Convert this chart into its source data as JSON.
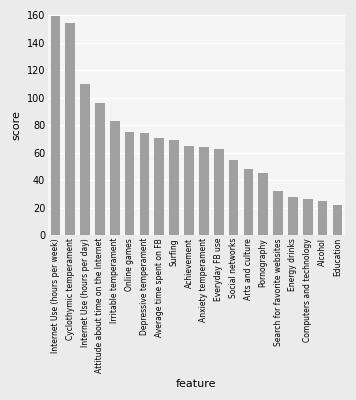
{
  "categories": [
    "Internet Use (hours per week)",
    "Cyclothymic temperament",
    "Internet Use (hours per day)",
    "Attitude about time on the Internet",
    "Irritable temperament",
    "Online games",
    "Depressive temperament",
    "Average time spent on FB",
    "Surfing",
    "Achievement",
    "Anxiety temperament",
    "Everyday FB use",
    "Social networks",
    "Arts and culture",
    "Pornography",
    "Search for favorite websites",
    "Energy drinks",
    "Computers and technology",
    "Alcohol",
    "Education"
  ],
  "values": [
    159,
    154,
    110,
    96,
    83,
    75,
    74,
    71,
    69,
    65,
    64,
    63,
    55,
    48,
    45,
    32,
    28,
    26,
    25,
    22
  ],
  "bar_color": "#a0a0a0",
  "ylabel": "score",
  "xlabel": "feature",
  "ylim": [
    0,
    160
  ],
  "yticks": [
    0,
    20,
    40,
    60,
    80,
    100,
    120,
    140,
    160
  ],
  "fig_background_color": "#ebebeb",
  "plot_background_color": "#f5f5f5",
  "grid_color": "#ffffff",
  "tick_label_fontsize": 5.5,
  "axis_label_fontsize": 8,
  "ytick_label_fontsize": 7
}
